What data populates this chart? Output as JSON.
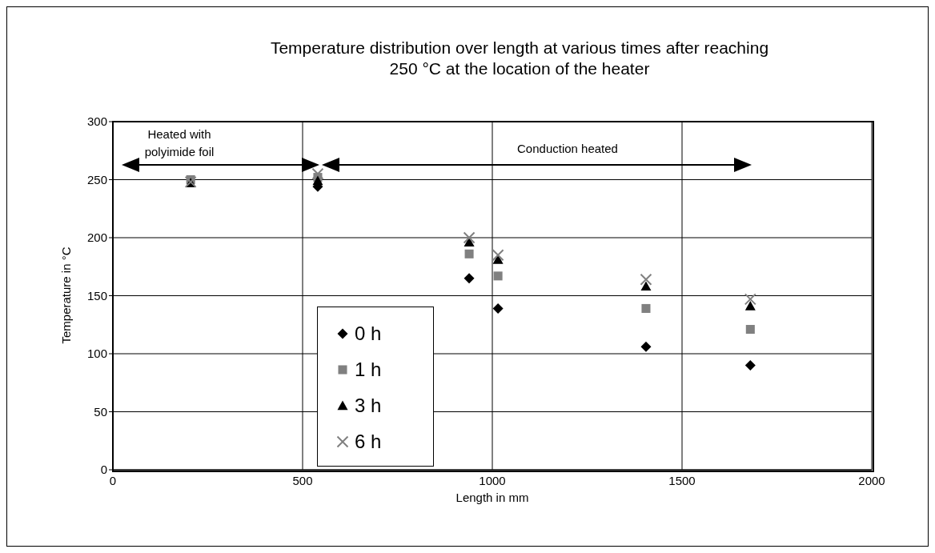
{
  "chart_data": {
    "type": "scatter",
    "title": "Temperature distribution over length at various times after reaching\n250 °C at the location of the heater",
    "xlabel": "Length in mm",
    "ylabel": "Temperature in °C",
    "x": [
      205,
      540,
      939,
      1015,
      1405,
      1680
    ],
    "series": [
      {
        "name": "0 h",
        "color": "#000000",
        "marker": "diamond",
        "values": [
          null,
          244,
          165,
          139,
          106,
          90
        ]
      },
      {
        "name": "1 h",
        "color": "#808080",
        "marker": "square",
        "values": [
          250,
          252,
          186,
          167,
          139,
          121
        ]
      },
      {
        "name": "3 h",
        "color": "#000000",
        "marker": "triangle",
        "values": [
          247,
          249,
          196,
          181,
          158,
          141
        ]
      },
      {
        "name": "6 h",
        "color": "#808080",
        "marker": "cross",
        "values": [
          248,
          255,
          200,
          185,
          164,
          147
        ]
      }
    ],
    "xlim": [
      0,
      2000
    ],
    "xticks": [
      0,
      500,
      1000,
      1500,
      2000
    ],
    "ylim": [
      0,
      300
    ],
    "yticks": [
      0,
      50,
      100,
      150,
      200,
      250,
      300
    ],
    "grid": true,
    "legend": "bottom left",
    "annotations": [
      "Heated with\npolyimide foil",
      "Conduction heated"
    ]
  }
}
